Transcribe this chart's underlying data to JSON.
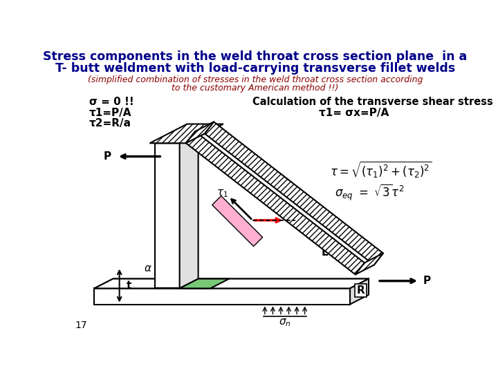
{
  "title_line1": "Stress components in the weld throat cross section plane  in a",
  "title_line2": "T- butt weldment with load-carrying transverse fillet welds",
  "subtitle_line1": "(simplified combination of stresses in the weld throat cross section according",
  "subtitle_line2": "to the customary American method !!)",
  "title_color": "#00008B",
  "subtitle_color": "#8B0000",
  "label_sigma": "σ = 0 !!",
  "label_tau1": "τ1=P/A",
  "label_tau2": "τ2=R/a",
  "calc_title": "Calculation of the transverse shear stress",
  "label_tau1_eq": "τ1= σx=P/A",
  "page_num": "17",
  "bg_color": "#FFFFFF",
  "hatch_color": "#000000",
  "body_color": "#FFFFFF",
  "green_color": "#90EE90",
  "pink_color": "#FFB0D0",
  "arrow_color": "#FF0000",
  "lw": 1.5
}
